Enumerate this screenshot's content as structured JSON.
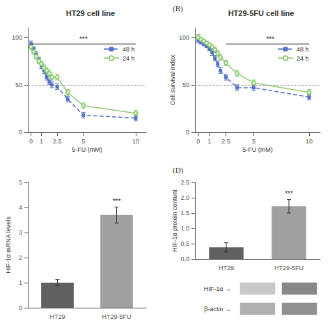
{
  "chart_data": [
    {
      "type": "line",
      "title": "HT29 cell line",
      "xlabel": "5-FU (mM)",
      "x": [
        0,
        0.25,
        0.5,
        0.75,
        1.0,
        1.25,
        1.5,
        1.75,
        2.0,
        2.5,
        3.5,
        5,
        10
      ],
      "xlim": [
        -0.3,
        11
      ],
      "xticks": [
        0,
        1,
        2.5,
        5,
        10
      ],
      "ylim": [
        0,
        110
      ],
      "yticks": [
        0,
        50,
        100
      ],
      "grid": false,
      "legend": "right",
      "hline": 50,
      "series": [
        {
          "name": "48 h",
          "values": [
            93,
            88,
            82,
            76,
            70,
            65,
            58,
            53,
            50,
            48,
            35,
            18,
            15
          ],
          "errors": [
            3,
            2,
            3,
            3,
            3,
            3,
            3,
            3,
            3,
            3,
            3,
            3,
            3
          ],
          "marker": "square",
          "line_style": "dashed"
        },
        {
          "name": "24 h",
          "values": [
            90,
            85,
            80,
            75,
            72,
            68,
            65,
            62,
            58,
            58,
            42,
            28,
            20
          ],
          "errors": [
            3,
            3,
            3,
            3,
            3,
            3,
            3,
            3,
            3,
            3,
            3,
            3,
            3
          ],
          "marker": "circle",
          "line_style": "solid"
        }
      ],
      "annotations": [
        {
          "text": "***",
          "x": 5,
          "y": 94,
          "bracket_x": [
            0,
            10
          ],
          "bracket_y": 93
        }
      ]
    },
    {
      "type": "line",
      "title": "HT29-5FU cell line",
      "panel_label": "(B)",
      "xlabel": "5-FU (mM)",
      "ylabel": "Cell survival index",
      "x": [
        0,
        0.25,
        0.5,
        0.75,
        1.0,
        1.25,
        1.5,
        1.75,
        2.0,
        2.5,
        3.5,
        5,
        10
      ],
      "xlim": [
        -0.3,
        11
      ],
      "xticks": [
        0,
        1,
        2.5,
        5,
        10
      ],
      "ylim": [
        0,
        110
      ],
      "yticks": [
        0,
        50,
        100
      ],
      "grid": false,
      "legend": "right",
      "hline": 50,
      "series": [
        {
          "name": "48 h",
          "values": [
            97,
            95,
            93,
            91,
            88,
            84,
            78,
            72,
            65,
            58,
            47,
            47,
            37
          ],
          "errors": [
            3,
            2,
            2,
            2,
            2,
            3,
            3,
            3,
            3,
            3,
            3,
            3,
            3
          ],
          "marker": "square",
          "line_style": "dashed"
        },
        {
          "name": "24 h",
          "values": [
            100,
            98,
            96,
            94,
            92,
            90,
            87,
            83,
            79,
            73,
            62,
            52,
            42
          ],
          "errors": [
            3,
            2,
            2,
            2,
            2,
            2,
            3,
            3,
            3,
            3,
            3,
            3,
            3
          ],
          "marker": "circle",
          "line_style": "solid"
        }
      ],
      "annotations": [
        {
          "text": "***",
          "x": 6.5,
          "y": 94,
          "bracket_x": [
            2.5,
            10
          ],
          "bracket_y": 93
        }
      ]
    },
    {
      "type": "bar",
      "categories": [
        "HT29",
        "HT29-5FU"
      ],
      "values": [
        1.0,
        3.7
      ],
      "errors": [
        0.12,
        0.32
      ],
      "colors": [
        "#606060",
        "#a0a0a0"
      ],
      "ylabel": "HIF-1α mRNA levels",
      "ylim": [
        0,
        5
      ],
      "yticks": [
        0,
        1,
        2,
        3,
        4,
        5
      ],
      "grid": false,
      "annotations": [
        {
          "text": "***",
          "category": "HT29-5FU"
        }
      ]
    },
    {
      "type": "bar",
      "panel_label": "(D)",
      "categories": [
        "HT29",
        "HT29-5FU"
      ],
      "values": [
        0.38,
        1.72
      ],
      "errors": [
        0.15,
        0.22
      ],
      "colors": [
        "#606060",
        "#a0a0a0"
      ],
      "ylabel": "HIF-1α protein content",
      "ylim": [
        0,
        2.5
      ],
      "yticks": [
        {
          "value": 0,
          "label": "0.0"
        },
        0.5,
        {
          "value": 1,
          "label": "1.0"
        },
        1.5,
        {
          "value": 2,
          "label": "2.0"
        },
        2.5
      ],
      "grid": false,
      "annotations": [
        {
          "text": "***",
          "category": "HT29-5FU"
        }
      ]
    },
    {
      "type": "blot",
      "rows": [
        "HIF-1α →",
        "β-actin →"
      ],
      "colors": [
        [
          "#c8c8c8",
          "#888888"
        ],
        [
          "#b0b0b0",
          "#909090"
        ]
      ]
    }
  ]
}
